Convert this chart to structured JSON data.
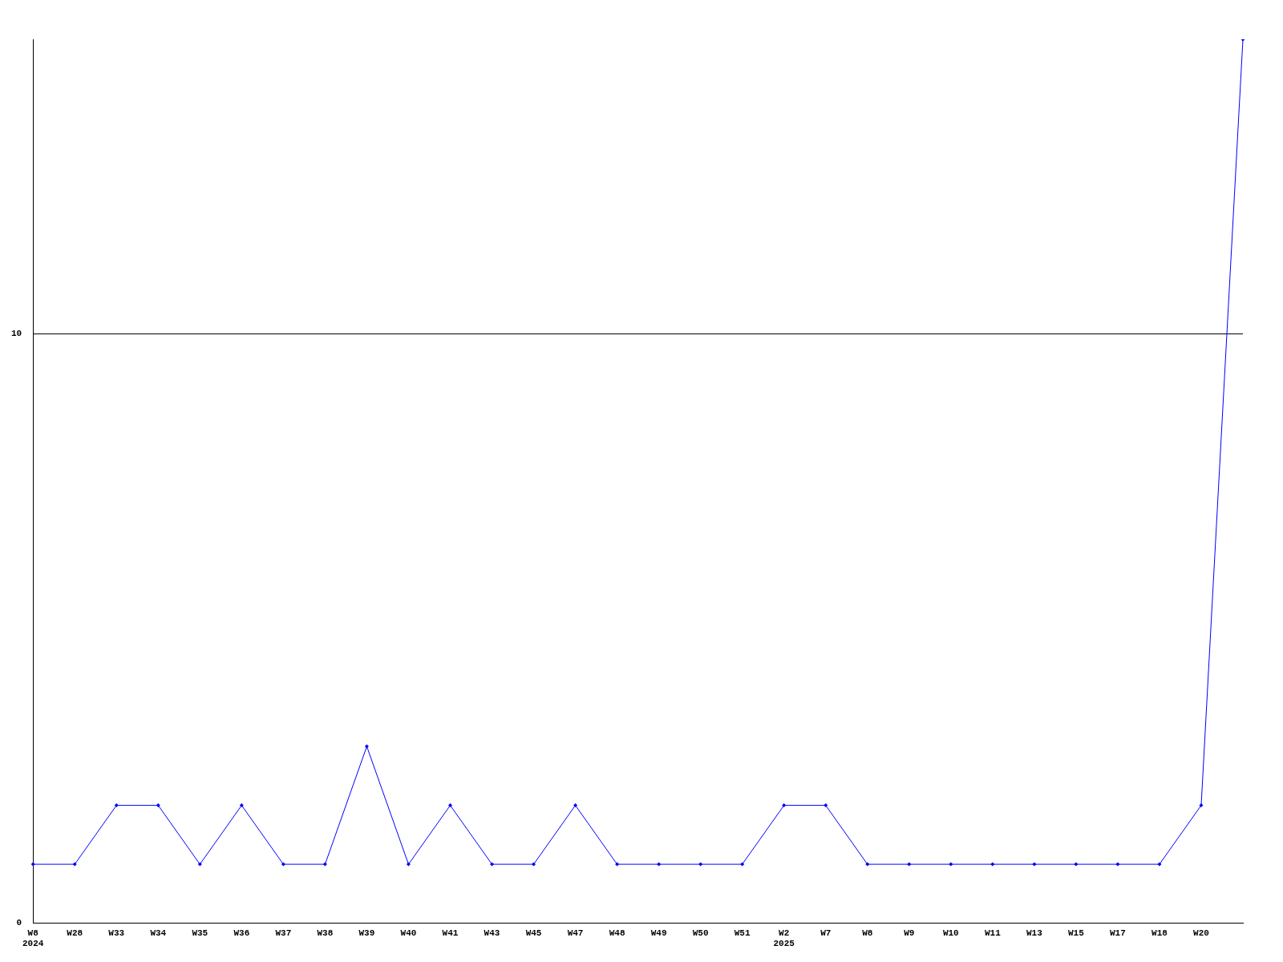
{
  "chart_data": {
    "type": "line",
    "categories": [
      "W8\n2024",
      "W28",
      "W33",
      "W34",
      "W35",
      "W36",
      "W37",
      "W38",
      "W39",
      "W40",
      "W41",
      "W43",
      "W45",
      "W47",
      "W48",
      "W49",
      "W50",
      "W51",
      "W2\n2025",
      "W7",
      "W8",
      "W9",
      "W10",
      "W11",
      "W13",
      "W15",
      "W17",
      "W18",
      "W20",
      null
    ],
    "series": [
      {
        "color": "#0000ff",
        "values": [
          1,
          1,
          2,
          2,
          1,
          2,
          1,
          1,
          3,
          1,
          2,
          1,
          1,
          2,
          1,
          1,
          1,
          1,
          2,
          2,
          1,
          1,
          1,
          1,
          1,
          1,
          1,
          1,
          2,
          15
        ]
      }
    ],
    "ylim": [
      0,
      15
    ],
    "yticks": [
      0,
      10
    ],
    "grid": "y",
    "legend": false,
    "marker": "diamond",
    "line_style": "solid"
  }
}
